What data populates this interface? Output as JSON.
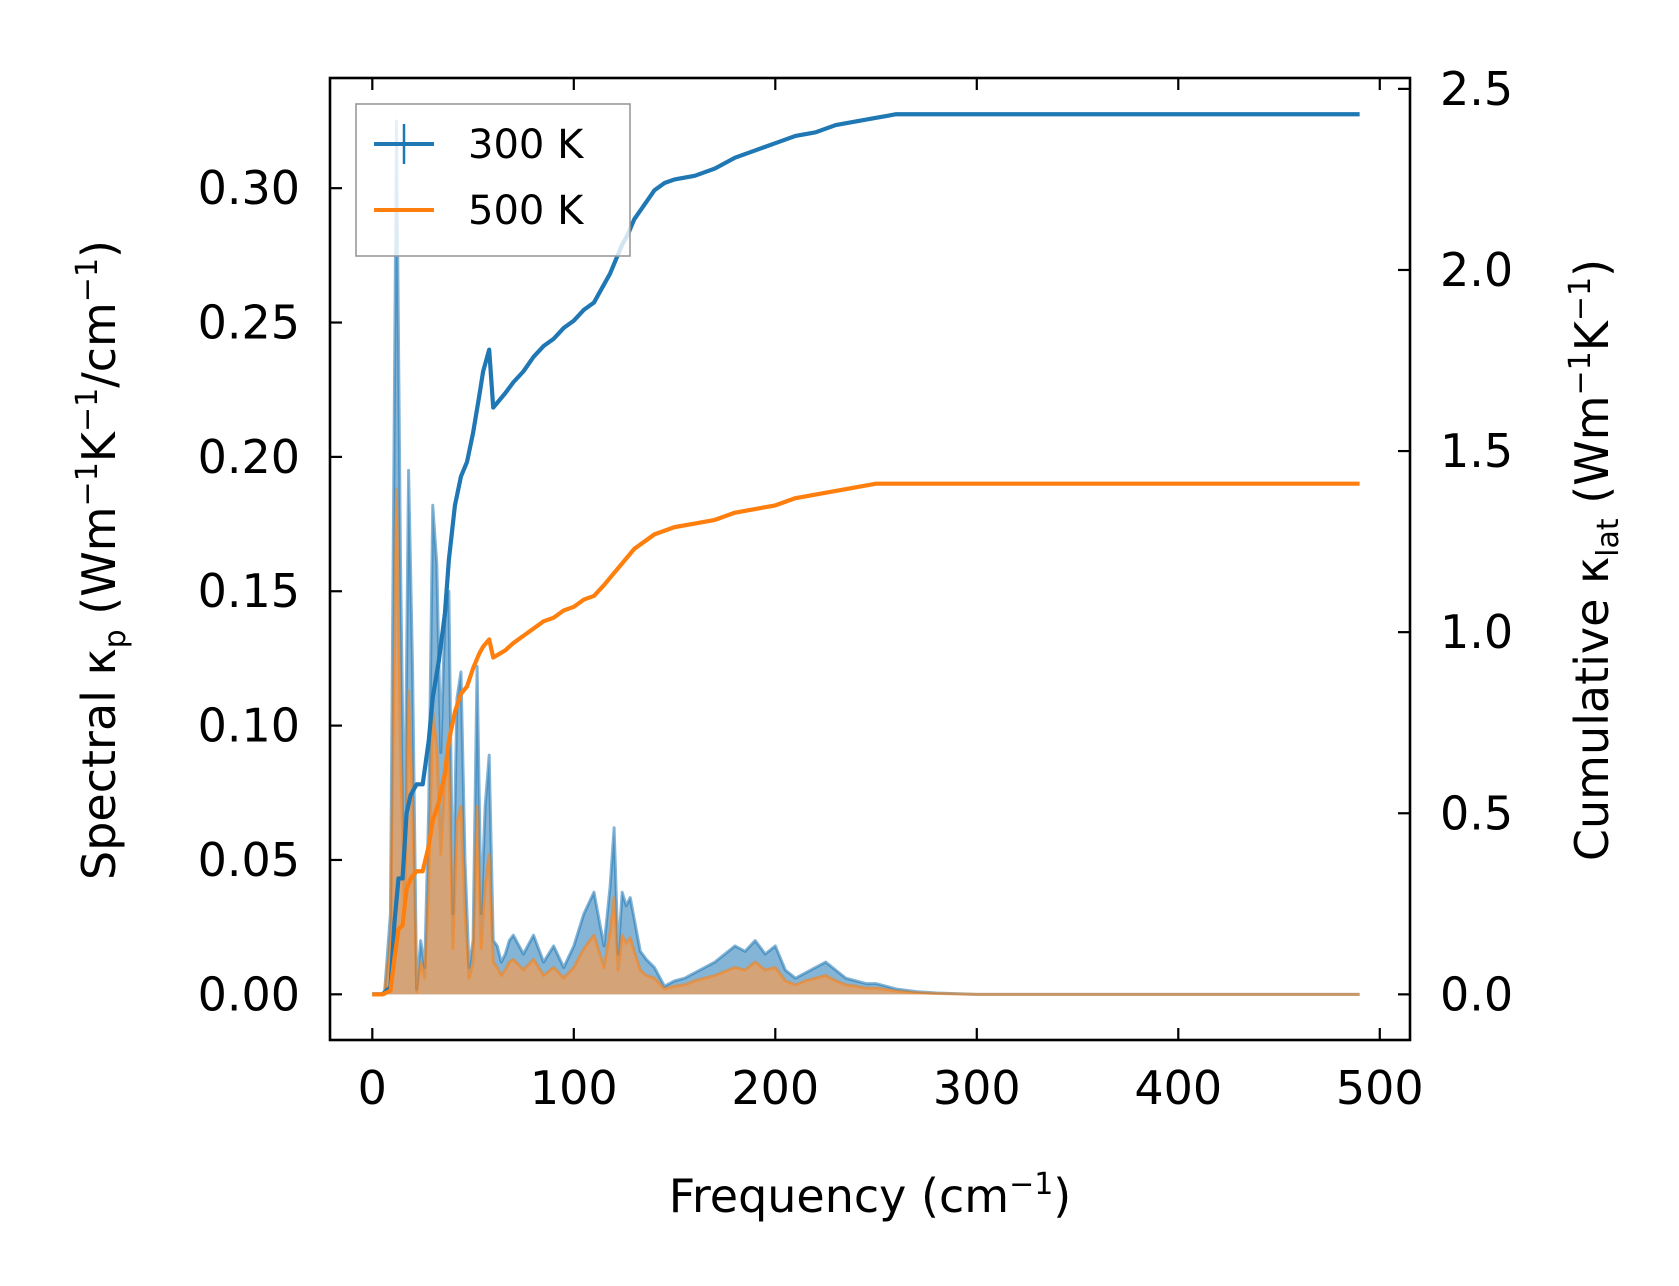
{
  "chart_data": {
    "type": "line",
    "title": "",
    "xlabel": {
      "main": "Frequency (cm",
      "sup": "−1",
      "close": ")"
    },
    "ylabel_left": {
      "prefix": "Spectral κ",
      "sub": "p",
      "unit_open": " (Wm",
      "sup1": "−1",
      "mid": "K",
      "sup2": "−1",
      "mid2": "/cm",
      "sup3": "−1",
      "close": ")"
    },
    "ylabel_right": {
      "prefix": "Cumulative κ",
      "sub": "lat",
      "unit_open": " (Wm",
      "sup1": "−1",
      "mid": "K",
      "sup2": "−1",
      "close": ")"
    },
    "xlim": [
      -21,
      515
    ],
    "ylim_left": [
      -0.017,
      0.341
    ],
    "ylim_right": [
      -0.126,
      2.53
    ],
    "x_ticks": [
      0,
      100,
      200,
      300,
      400,
      500
    ],
    "x_tick_labels": [
      "0",
      "100",
      "200",
      "300",
      "400",
      "500"
    ],
    "y_left_ticks": [
      0.0,
      0.05,
      0.1,
      0.15,
      0.2,
      0.25,
      0.3
    ],
    "y_left_tick_labels": [
      "0.00",
      "0.05",
      "0.10",
      "0.15",
      "0.20",
      "0.25",
      "0.30"
    ],
    "y_right_ticks": [
      0.0,
      0.5,
      1.0,
      1.5,
      2.0,
      2.5
    ],
    "y_right_tick_labels": [
      "0.0",
      "0.5",
      "1.0",
      "1.5",
      "2.0",
      "2.5"
    ],
    "legend": {
      "position": "top-left",
      "entries": [
        "300 K",
        "500 K"
      ]
    },
    "colors": {
      "s300": "#1f77b4",
      "s500": "#ff7f0e",
      "fill300": "#1f77b4",
      "fill500": "#e8a060"
    },
    "spectral_x": [
      0,
      3,
      6,
      9,
      12,
      14,
      16,
      18,
      20,
      22,
      24,
      26,
      28,
      30,
      32,
      34,
      36,
      38,
      40,
      42,
      44,
      46,
      48,
      50,
      52,
      54,
      56,
      58,
      60,
      62,
      64,
      66,
      68,
      70,
      75,
      80,
      85,
      90,
      95,
      100,
      105,
      110,
      115,
      118,
      120,
      122,
      124,
      126,
      128,
      130,
      133,
      136,
      140,
      145,
      150,
      155,
      160,
      170,
      180,
      185,
      190,
      195,
      200,
      205,
      210,
      215,
      220,
      225,
      230,
      235,
      240,
      245,
      250,
      260,
      270,
      280,
      300,
      350,
      400,
      450,
      490
    ],
    "series": [
      {
        "name": "300 K",
        "spectral": [
          0,
          0,
          0,
          0.03,
          0.325,
          0.16,
          0.05,
          0.195,
          0.12,
          0.002,
          0.02,
          0.01,
          0.07,
          0.182,
          0.16,
          0.09,
          0.14,
          0.15,
          0.03,
          0.11,
          0.12,
          0.05,
          0.01,
          0.02,
          0.122,
          0.03,
          0.07,
          0.089,
          0.02,
          0.018,
          0.012,
          0.015,
          0.02,
          0.022,
          0.015,
          0.022,
          0.012,
          0.018,
          0.01,
          0.018,
          0.03,
          0.038,
          0.018,
          0.04,
          0.062,
          0.015,
          0.038,
          0.033,
          0.036,
          0.028,
          0.016,
          0.013,
          0.01,
          0.003,
          0.005,
          0.006,
          0.008,
          0.012,
          0.018,
          0.016,
          0.02,
          0.015,
          0.018,
          0.009,
          0.006,
          0.008,
          0.01,
          0.012,
          0.009,
          0.006,
          0.005,
          0.004,
          0.004,
          0.002,
          0.001,
          0.0005,
          0,
          0,
          0,
          0,
          0
        ],
        "cumulative_x": [
          0,
          5,
          9,
          11,
          13,
          15,
          17,
          19,
          22,
          25,
          28,
          30,
          33,
          36,
          38,
          41,
          44,
          47,
          50,
          53,
          55,
          58,
          60,
          63,
          66,
          70,
          75,
          80,
          85,
          90,
          95,
          100,
          105,
          110,
          115,
          118,
          121,
          124,
          127,
          130,
          135,
          140,
          145,
          150,
          160,
          170,
          180,
          190,
          200,
          205,
          210,
          220,
          230,
          240,
          250,
          260,
          270,
          280,
          300,
          350,
          400,
          450,
          490
        ],
        "cumulative": [
          0,
          0,
          0.02,
          0.2,
          0.32,
          0.32,
          0.5,
          0.55,
          0.58,
          0.58,
          0.7,
          0.82,
          0.92,
          1.05,
          1.2,
          1.35,
          1.43,
          1.47,
          1.55,
          1.65,
          1.72,
          1.78,
          1.62,
          1.64,
          1.66,
          1.69,
          1.72,
          1.76,
          1.79,
          1.81,
          1.84,
          1.86,
          1.89,
          1.91,
          1.96,
          1.99,
          2.03,
          2.07,
          2.1,
          2.14,
          2.18,
          2.22,
          2.24,
          2.25,
          2.26,
          2.28,
          2.31,
          2.33,
          2.35,
          2.36,
          2.37,
          2.38,
          2.4,
          2.41,
          2.42,
          2.43,
          2.43,
          2.43,
          2.43,
          2.43,
          2.43,
          2.43,
          2.43
        ]
      },
      {
        "name": "500 K",
        "spectral": [
          0,
          0,
          0,
          0.02,
          0.188,
          0.09,
          0.03,
          0.113,
          0.07,
          0.001,
          0.012,
          0.006,
          0.04,
          0.105,
          0.092,
          0.052,
          0.08,
          0.087,
          0.017,
          0.064,
          0.07,
          0.03,
          0.006,
          0.012,
          0.07,
          0.017,
          0.04,
          0.052,
          0.012,
          0.01,
          0.007,
          0.009,
          0.012,
          0.013,
          0.009,
          0.013,
          0.007,
          0.01,
          0.006,
          0.01,
          0.017,
          0.022,
          0.01,
          0.023,
          0.036,
          0.009,
          0.022,
          0.019,
          0.021,
          0.016,
          0.009,
          0.007,
          0.006,
          0.002,
          0.003,
          0.0035,
          0.005,
          0.007,
          0.01,
          0.009,
          0.012,
          0.009,
          0.01,
          0.005,
          0.0035,
          0.005,
          0.006,
          0.007,
          0.005,
          0.0035,
          0.003,
          0.0023,
          0.0023,
          0.0012,
          0.0006,
          0.0003,
          0,
          0,
          0,
          0,
          0
        ],
        "cumulative_x": [
          0,
          5,
          9,
          11,
          13,
          15,
          17,
          19,
          22,
          25,
          28,
          30,
          33,
          36,
          38,
          41,
          44,
          47,
          50,
          53,
          55,
          58,
          60,
          63,
          66,
          70,
          75,
          80,
          85,
          90,
          95,
          100,
          105,
          110,
          115,
          118,
          121,
          124,
          127,
          130,
          135,
          140,
          145,
          150,
          160,
          170,
          180,
          190,
          200,
          205,
          210,
          220,
          230,
          240,
          250,
          260,
          270,
          280,
          300,
          350,
          400,
          450,
          490
        ],
        "cumulative": [
          0,
          0,
          0.01,
          0.1,
          0.18,
          0.19,
          0.29,
          0.32,
          0.34,
          0.34,
          0.41,
          0.48,
          0.53,
          0.61,
          0.7,
          0.78,
          0.83,
          0.85,
          0.9,
          0.94,
          0.96,
          0.98,
          0.93,
          0.94,
          0.95,
          0.97,
          0.99,
          1.01,
          1.03,
          1.04,
          1.06,
          1.07,
          1.09,
          1.1,
          1.13,
          1.15,
          1.17,
          1.19,
          1.21,
          1.23,
          1.25,
          1.27,
          1.28,
          1.29,
          1.3,
          1.31,
          1.33,
          1.34,
          1.35,
          1.36,
          1.37,
          1.38,
          1.39,
          1.4,
          1.41,
          1.41,
          1.41,
          1.41,
          1.41,
          1.41,
          1.41,
          1.41,
          1.41
        ]
      }
    ]
  }
}
